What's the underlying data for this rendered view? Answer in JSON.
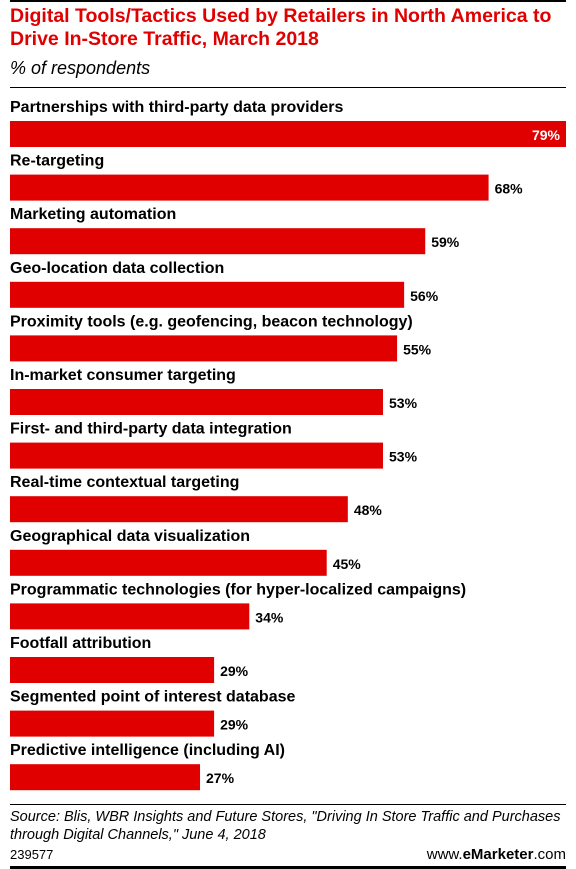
{
  "header": {
    "title": "Digital Tools/Tactics Used by Retailers in North America to Drive In-Store Traffic, March 2018",
    "subtitle": "% of respondents"
  },
  "footer": {
    "source": "Source: Blis, WBR Insights and Future Stores, \"Driving In Store Traffic and Purchases through Digital Channels,\" June 4, 2018",
    "chart_id": "239577",
    "brand_prefix": "www.",
    "brand_name": "eMarketer",
    "brand_suffix": ".com"
  },
  "colors": {
    "bar": "#e00000",
    "title": "#e00000"
  },
  "chart_data": {
    "type": "bar",
    "orientation": "horizontal",
    "title": "Digital Tools/Tactics Used by Retailers in North America to Drive In-Store Traffic, March 2018",
    "subtitle": "% of respondents",
    "unit": "%",
    "categories": [
      "Partnerships with third-party data providers",
      "Re-targeting",
      "Marketing automation",
      "Geo-location data collection",
      "Proximity tools (e.g. geofencing, beacon technology)",
      "In-market consumer targeting",
      "First- and third-party data integration",
      "Real-time contextual targeting",
      "Geographical data visualization",
      "Programmatic technologies (for hyper-localized campaigns)",
      "Footfall attribution",
      "Segmented point of interest database",
      "Predictive intelligence (including AI)"
    ],
    "values": [
      79,
      68,
      59,
      56,
      55,
      53,
      53,
      48,
      45,
      34,
      29,
      29,
      27
    ],
    "value_labels": [
      "79%",
      "68%",
      "59%",
      "56%",
      "55%",
      "53%",
      "53%",
      "48%",
      "45%",
      "34%",
      "29%",
      "29%",
      "27%"
    ],
    "xlim": [
      0,
      79
    ],
    "grid": false,
    "legend": "none"
  }
}
